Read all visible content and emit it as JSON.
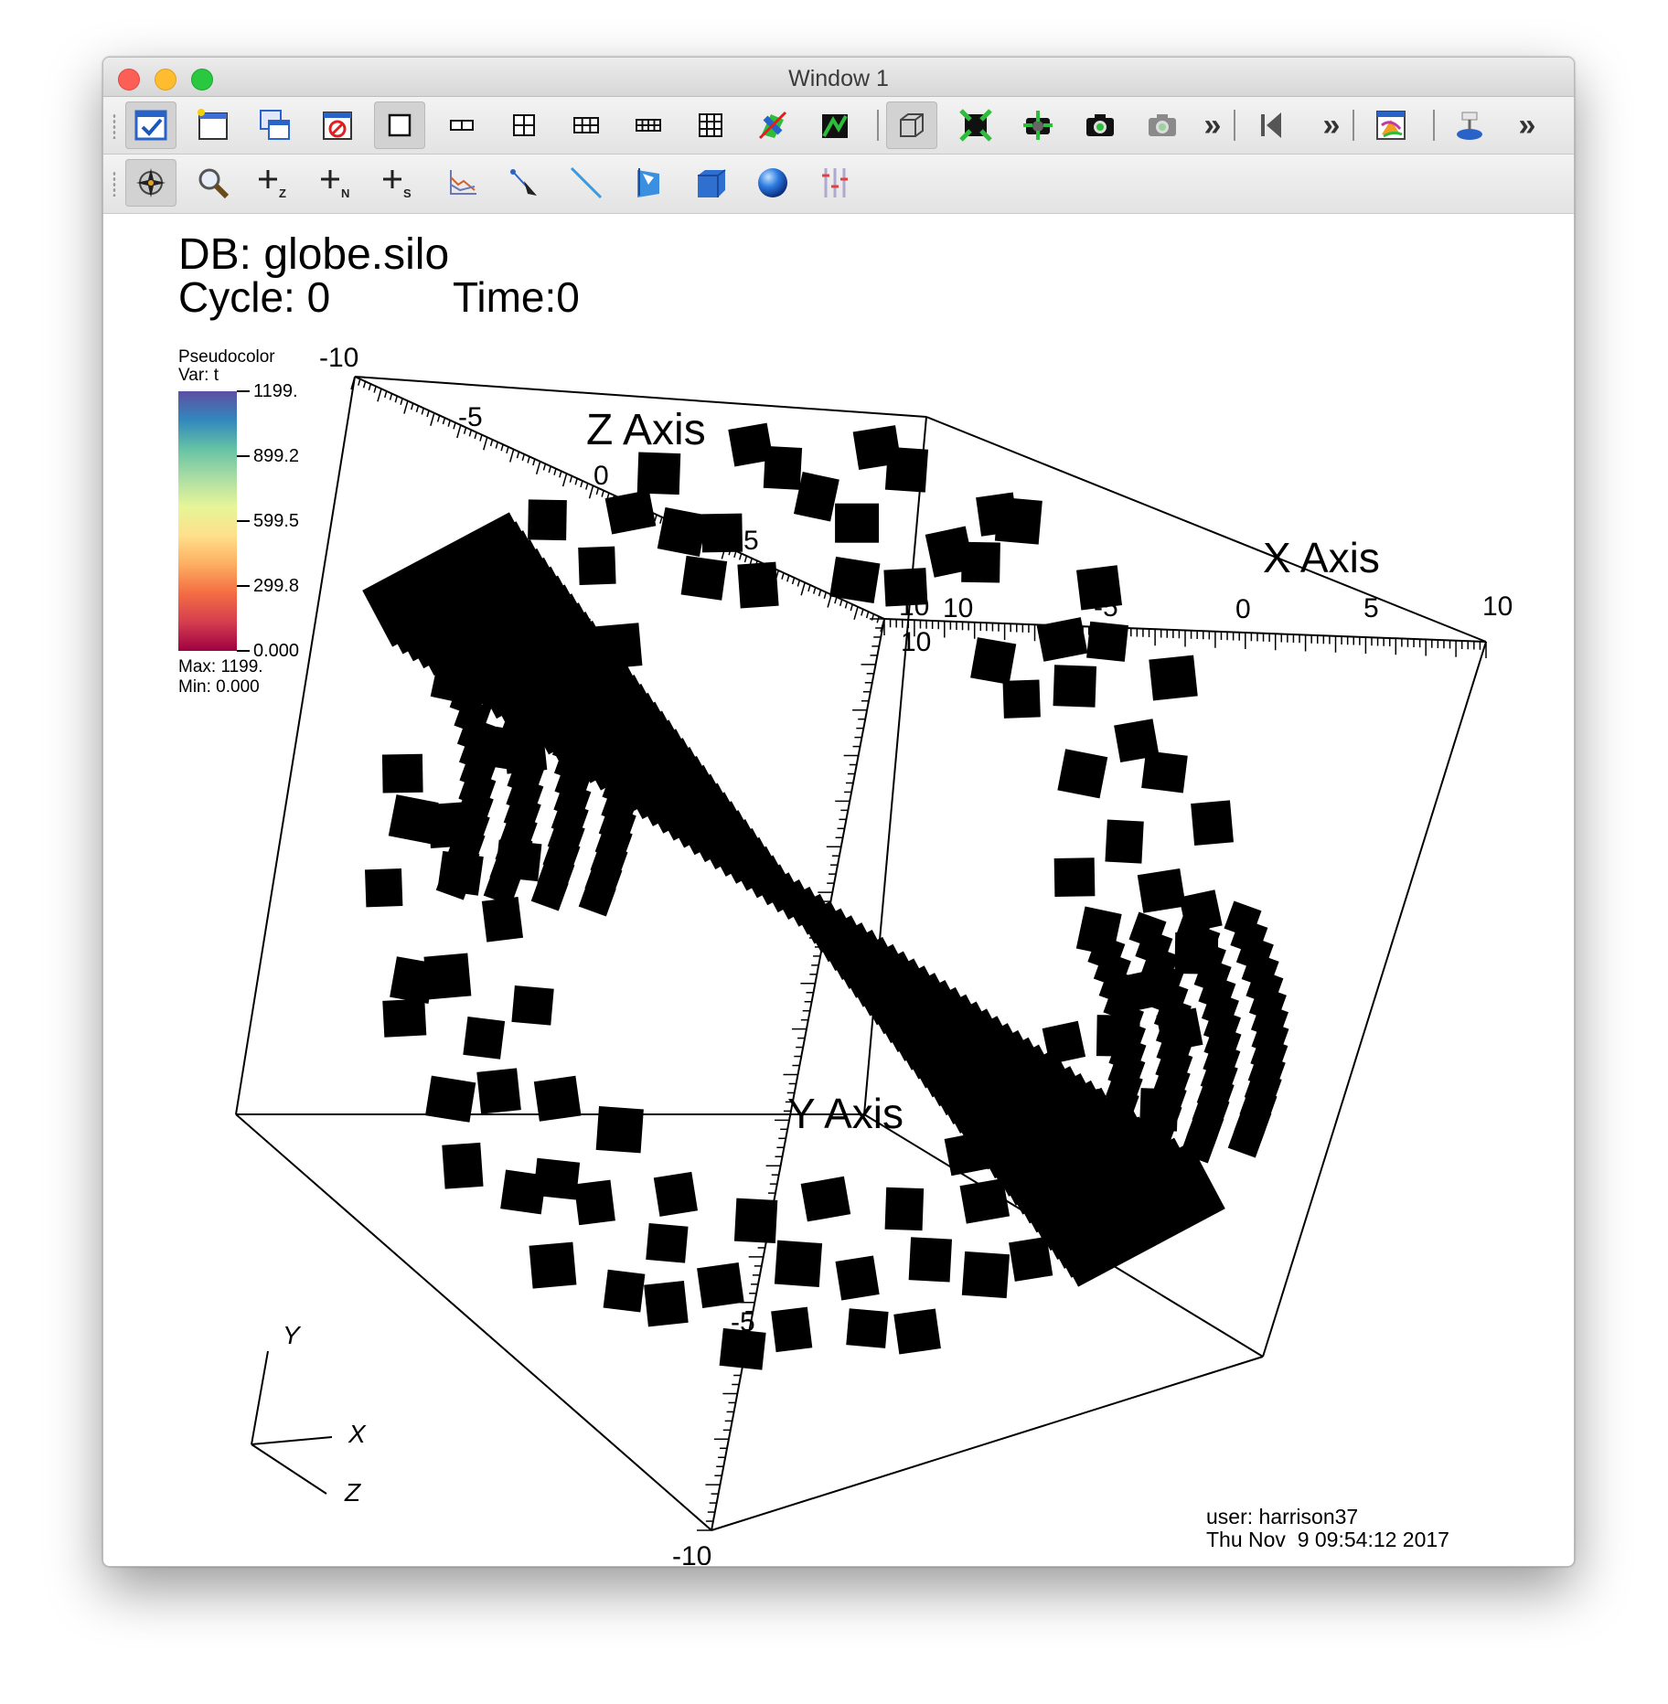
{
  "window": {
    "title": "Window 1"
  },
  "toolbar1": {
    "buttons": [
      {
        "name": "active-window-toggle-icon",
        "active": true
      },
      {
        "name": "new-window-icon"
      },
      {
        "name": "clone-window-icon"
      },
      {
        "name": "delete-window-icon"
      },
      {
        "name": "layout-1x1-icon",
        "active": true
      },
      {
        "name": "layout-1x2-icon"
      },
      {
        "name": "layout-2x2-icon"
      },
      {
        "name": "layout-2x3-icon"
      },
      {
        "name": "layout-2x4-icon"
      },
      {
        "name": "layout-3x3-icon"
      },
      {
        "name": "invert-background-icon"
      },
      {
        "name": "lock-view-icon"
      },
      {
        "name": "perspective-box-icon",
        "active": true
      },
      {
        "name": "recenter-view-icon"
      },
      {
        "name": "undo-view-icon"
      },
      {
        "name": "redo-view-icon"
      },
      {
        "name": "camera-save-icon"
      },
      {
        "name": "more-chevron-icon"
      },
      {
        "name": "animation-reverse-step-icon"
      },
      {
        "name": "more-chevron-icon"
      },
      {
        "name": "spin-mode-icon"
      },
      {
        "name": "lock-tools-icon"
      },
      {
        "name": "more-chevron-icon"
      }
    ]
  },
  "toolbar2": {
    "buttons": [
      {
        "name": "navigate-mode-icon",
        "active": true
      },
      {
        "name": "zoom-mode-icon"
      },
      {
        "name": "zone-pick-icon",
        "sub": "Z"
      },
      {
        "name": "node-pick-icon",
        "sub": "N"
      },
      {
        "name": "spreadsheet-pick-icon",
        "sub": "S"
      },
      {
        "name": "curve-pick-icon"
      },
      {
        "name": "pick-arrow-icon"
      },
      {
        "name": "lineout-icon"
      },
      {
        "name": "plane-tool-icon"
      },
      {
        "name": "box-tool-icon"
      },
      {
        "name": "sphere-tool-icon"
      },
      {
        "name": "axis-restriction-icon"
      }
    ]
  },
  "hud": {
    "db_label": "DB: globe.silo",
    "cycle_label": "Cycle: 0",
    "time_label": "Time:0",
    "user_label": "user: harrison37",
    "date_label": "Thu Nov  9 09:54:12 2017"
  },
  "legend": {
    "plot_type": "Pseudocolor",
    "var_label": "Var: t",
    "ticks": [
      "1199.",
      "899.2",
      "599.5",
      "299.8",
      "0.000"
    ],
    "max_label": "Max:  1199.",
    "min_label": "Min:  0.000",
    "colors": [
      "#5e4fa2",
      "#3288bd",
      "#66c2a5",
      "#abdda4",
      "#e6f598",
      "#fee08b",
      "#fdae61",
      "#f46d43",
      "#d53e4f",
      "#9e0142"
    ]
  },
  "axes": {
    "z_title": "Z Axis",
    "x_title": "X Axis",
    "y_title": "Y Axis",
    "z_ticks": [
      "-10",
      "-5",
      "0",
      "5",
      "10"
    ],
    "x_ticks": [
      "10",
      "-5",
      "0",
      "5",
      "10"
    ],
    "y_ticks": [
      "10",
      "-5",
      "-10"
    ],
    "triad": {
      "x": "X",
      "y": "Y",
      "z": "Z"
    }
  }
}
